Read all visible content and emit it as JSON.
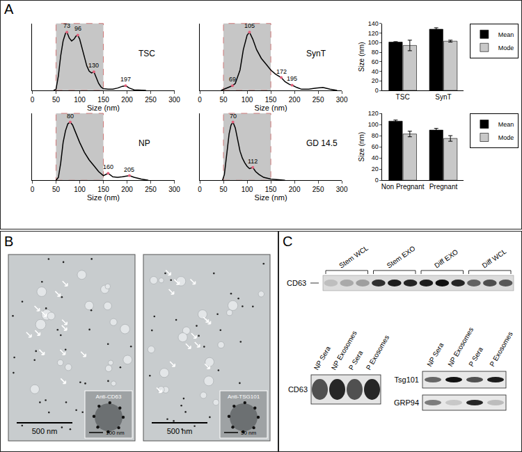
{
  "chart_data": [
    {
      "type": "line",
      "title": "TSC",
      "x_label": "Size (nm)",
      "x": [
        45,
        50,
        55,
        60,
        65,
        70,
        73,
        78,
        83,
        88,
        92,
        96,
        100,
        105,
        110,
        115,
        120,
        125,
        130,
        135,
        140,
        145,
        150,
        160,
        170,
        180,
        190,
        197,
        205,
        215,
        230,
        240
      ],
      "values": [
        0,
        0.02,
        0.25,
        0.6,
        0.85,
        0.98,
        1.0,
        0.9,
        0.85,
        0.88,
        0.93,
        0.95,
        0.88,
        0.72,
        0.55,
        0.42,
        0.33,
        0.3,
        0.32,
        0.22,
        0.12,
        0.06,
        0.03,
        0.02,
        0.02,
        0.04,
        0.07,
        0.08,
        0.04,
        0.01,
        0,
        0
      ],
      "color": "#000000",
      "xlim": [
        0,
        300
      ],
      "xticks": [
        0,
        50,
        100,
        150,
        200,
        250,
        300
      ],
      "ylim": [
        0,
        1.15
      ],
      "tick_labels": "x",
      "grid": false,
      "highlight": [
        50,
        150
      ],
      "peak_labels": [
        73,
        96,
        130,
        197
      ]
    },
    {
      "type": "line",
      "title": "SynT",
      "x_label": "Size (nm)",
      "x": [
        45,
        55,
        62,
        69,
        75,
        85,
        92,
        100,
        105,
        112,
        120,
        130,
        140,
        150,
        160,
        172,
        180,
        190,
        195,
        205,
        215,
        230,
        245,
        260,
        275,
        290
      ],
      "values": [
        0,
        0.03,
        0.06,
        0.08,
        0.12,
        0.35,
        0.7,
        0.95,
        1.0,
        0.88,
        0.7,
        0.55,
        0.45,
        0.35,
        0.28,
        0.22,
        0.15,
        0.1,
        0.09,
        0.05,
        0.02,
        0.02,
        0.04,
        0.05,
        0.02,
        0
      ],
      "color": "#000000",
      "xlim": [
        0,
        300
      ],
      "xticks": [
        0,
        50,
        100,
        150,
        200,
        250,
        300
      ],
      "ylim": [
        0,
        1.15
      ],
      "tick_labels": "x",
      "grid": false,
      "highlight": [
        50,
        150
      ],
      "peak_labels": [
        69,
        105,
        172,
        195
      ]
    },
    {
      "type": "line",
      "title": "NP",
      "x_label": "Size (nm)",
      "x": [
        50,
        55,
        60,
        65,
        70,
        75,
        80,
        85,
        90,
        100,
        110,
        120,
        130,
        140,
        150,
        160,
        170,
        180,
        190,
        205,
        215,
        230,
        245
      ],
      "values": [
        0,
        0.05,
        0.3,
        0.65,
        0.85,
        0.97,
        1.0,
        0.95,
        0.85,
        0.65,
        0.48,
        0.35,
        0.25,
        0.15,
        0.08,
        0.12,
        0.06,
        0.05,
        0.06,
        0.08,
        0.05,
        0.02,
        0
      ],
      "color": "#000000",
      "xlim": [
        0,
        300
      ],
      "xticks": [
        0,
        50,
        100,
        150,
        200,
        250,
        300
      ],
      "ylim": [
        0,
        1.15
      ],
      "tick_labels": "x",
      "grid": false,
      "highlight": [
        50,
        150
      ],
      "peak_labels": [
        80,
        160,
        205
      ]
    },
    {
      "type": "line",
      "title": "GD 14.5",
      "x_label": "Size (nm)",
      "x": [
        48,
        52,
        57,
        62,
        66,
        70,
        75,
        80,
        85,
        90,
        95,
        100,
        105,
        112,
        118,
        125,
        135,
        150,
        165,
        180
      ],
      "values": [
        0,
        0.1,
        0.45,
        0.8,
        0.95,
        1.0,
        0.9,
        0.7,
        0.5,
        0.38,
        0.3,
        0.24,
        0.2,
        0.22,
        0.15,
        0.1,
        0.05,
        0.02,
        0.01,
        0
      ],
      "color": "#000000",
      "xlim": [
        0,
        300
      ],
      "xticks": [
        0,
        50,
        100,
        150,
        200,
        250,
        300
      ],
      "ylim": [
        0,
        1.15
      ],
      "tick_labels": "x",
      "grid": false,
      "highlight": [
        50,
        150
      ],
      "peak_labels": [
        70,
        112
      ]
    },
    {
      "type": "bar",
      "y_label": "Size (nm)",
      "categories": [
        "TSC",
        "SynT"
      ],
      "series": [
        {
          "name": "Mean",
          "color": "#000000",
          "values": [
            101,
            128
          ],
          "errors": [
            1,
            3
          ]
        },
        {
          "name": "Mode",
          "color": "#c8c8c8",
          "values": [
            94,
            103
          ],
          "errors": [
            11,
            2
          ]
        }
      ],
      "ylim": [
        0,
        140
      ],
      "yticks": [
        0,
        20,
        40,
        60,
        80,
        100,
        120,
        140
      ],
      "legend": "upper right",
      "grid": false
    },
    {
      "type": "bar",
      "y_label": "Size (nm)",
      "categories": [
        "Non Pregnant",
        "Pregnant"
      ],
      "series": [
        {
          "name": "Mean",
          "color": "#000000",
          "values": [
            106,
            90
          ],
          "errors": [
            2,
            3
          ]
        },
        {
          "name": "Mode",
          "color": "#c8c8c8",
          "values": [
            83,
            75
          ],
          "errors": [
            5,
            5
          ]
        }
      ],
      "ylim": [
        0,
        120
      ],
      "yticks": [
        0,
        20,
        40,
        60,
        80,
        100,
        120
      ],
      "legend": "upper right",
      "grid": false
    }
  ],
  "panel_labels": [
    "A",
    "B",
    "C"
  ],
  "tem": {
    "images": [
      {
        "scale_bar": "500 nm",
        "inset_label": "Anti-CD63",
        "inset_scale_bar": "100 nm"
      },
      {
        "scale_bar": "500 nm",
        "inset_label": "Anti-TSG101",
        "inset_scale_bar": "50 nm"
      }
    ]
  },
  "blots": {
    "top": {
      "lanes": [
        "Stem WCL",
        "Stem EXO",
        "Diff EXO",
        "Diff WCL"
      ],
      "proteins": [
        "CD63"
      ]
    },
    "bottom_left": {
      "lanes": [
        "NP Sera",
        "NP Exosomes",
        "P Sera",
        "P Exosomes"
      ],
      "proteins": [
        "CD63"
      ]
    },
    "bottom_right": {
      "lanes": [
        "NP Sera",
        "NP Exosomes",
        "P Sera",
        "P Exosomes"
      ],
      "proteins": [
        "Tsg101",
        "GRP94"
      ]
    }
  }
}
